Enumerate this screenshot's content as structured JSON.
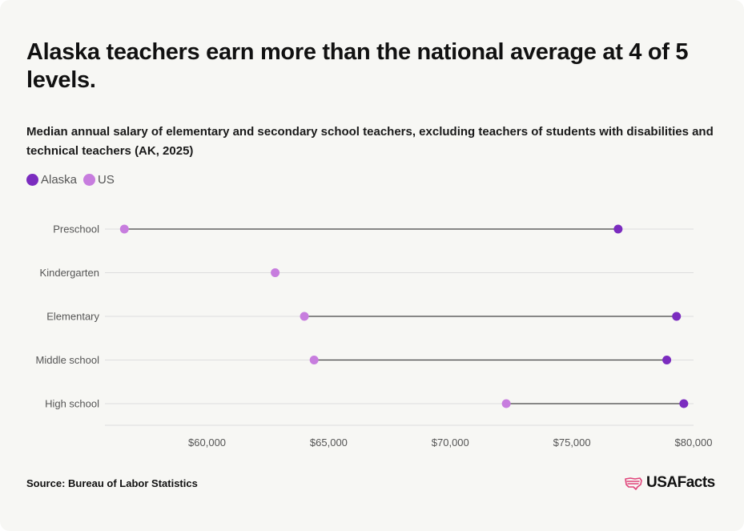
{
  "title": "Alaska teachers earn more than the national average at 4 of 5 levels.",
  "subtitle": "Median annual salary of elementary and secondary school teachers, excluding teachers of students with disabilities and technical teachers (AK, 2025)",
  "legend": [
    {
      "label": "Alaska",
      "color": "#7b2cbf"
    },
    {
      "label": "US",
      "color": "#c77dde"
    }
  ],
  "source": "Source: Bureau of Labor Statistics",
  "logo": {
    "text": "USAFacts",
    "icon": "us-map-flag-icon",
    "color": "#e0457b"
  },
  "chart_data": {
    "type": "dumbbell",
    "categories": [
      "Preschool",
      "Kindergarten",
      "Elementary",
      "Middle school",
      "High school"
    ],
    "series": [
      {
        "name": "US",
        "values": [
          56600,
          62800,
          64000,
          64400,
          72300
        ]
      },
      {
        "name": "Alaska",
        "values": [
          76900,
          null,
          79300,
          78900,
          79600
        ]
      }
    ],
    "xlim": [
      55800,
      80000
    ],
    "xticks": [
      60000,
      65000,
      70000,
      75000,
      80000
    ],
    "xticklabels": [
      "$60,000",
      "$65,000",
      "$70,000",
      "$75,000",
      "$80,000"
    ],
    "grid": true,
    "legend_position": "top-left"
  }
}
